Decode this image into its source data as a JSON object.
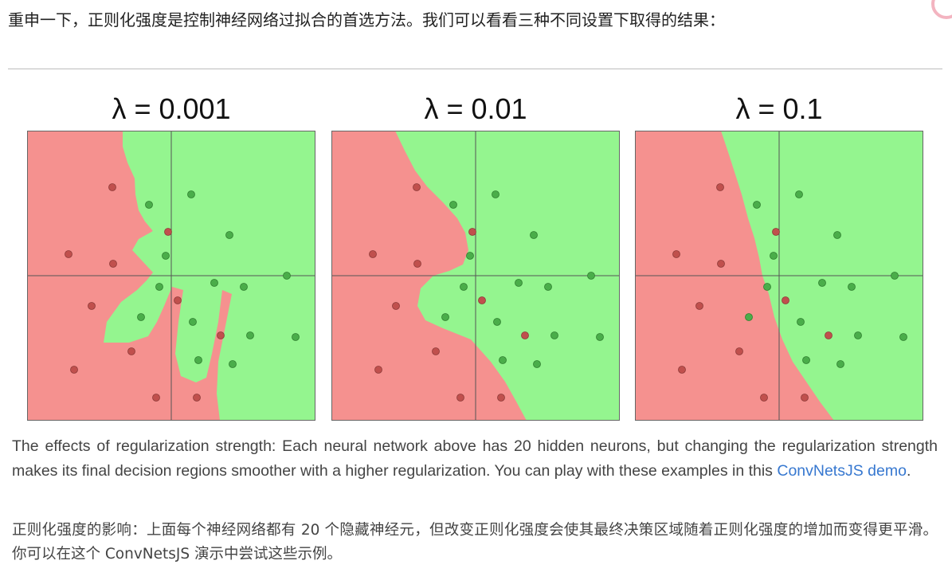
{
  "intro_text": "重申一下，正则化强度是控制神经网络过拟合的首选方法。我们可以看看三种不同设置下取得的结果：",
  "panels": [
    {
      "title": "λ = 0.001"
    },
    {
      "title": "λ = 0.01"
    },
    {
      "title": "λ = 0.1"
    }
  ],
  "caption": {
    "text": "The effects of regularization strength: Each neural network above has 20 hidden neurons, but changing the regularization strength makes its final decision regions smoother with a higher regularization. You can play with these examples in this ",
    "link_text": "ConvNetsJS demo",
    "end": "."
  },
  "translation": "正则化强度的影响：上面每个神经网络都有 20 个隐藏神经元，但改变正则化强度会使其最终决策区域随着正则化强度的增加而变得更平滑。你可以在这个 ConvNetsJS 演示中尝试这些示例。",
  "colors": {
    "red_region": "#f5918f",
    "green_region": "#94f58f",
    "red_point": "#c0504d",
    "green_point": "#4aad4a",
    "link": "#3778d0"
  }
}
